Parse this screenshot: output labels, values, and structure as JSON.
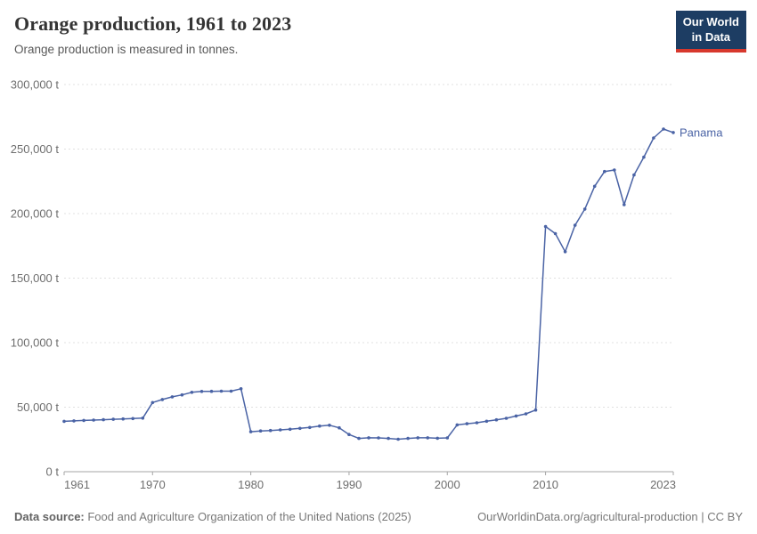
{
  "header": {
    "title": "Orange production, 1961 to 2023",
    "subtitle": "Orange production is measured in tonnes.",
    "logo": {
      "line1": "Our World",
      "line2": "in Data"
    }
  },
  "footer": {
    "source_label": "Data source:",
    "source_text": " Food and Agriculture Organization of the United Nations (2025)",
    "link_text": "OurWorldinData.org/agricultural-production | CC BY"
  },
  "colors": {
    "line": "#4a63a5",
    "grid": "#e0e0e0",
    "axis": "#a5a5a5",
    "tick_label": "#6e6e6e",
    "title": "#343434",
    "subtitle": "#595959",
    "footer": "#787878",
    "logo_bg": "#1d3d63",
    "logo_red": "#d7382d"
  },
  "chart_data": {
    "type": "line",
    "title": "Orange production, 1961 to 2023",
    "ylabel": "",
    "xlabel": "",
    "unit": "tonnes",
    "entity": "Panama",
    "grid": "horizontal-dashed",
    "legend_position": "end-of-line-label",
    "xlim": [
      1961,
      2023
    ],
    "ylim": [
      0,
      300000
    ],
    "xticks": [
      1961,
      1970,
      1980,
      1990,
      2000,
      2010,
      2023
    ],
    "yticks": [
      0,
      50000,
      100000,
      150000,
      200000,
      250000,
      300000
    ],
    "ytick_suffix": " t",
    "x": [
      1961,
      1962,
      1963,
      1964,
      1965,
      1966,
      1967,
      1968,
      1969,
      1970,
      1971,
      1972,
      1973,
      1974,
      1975,
      1976,
      1977,
      1978,
      1979,
      1980,
      1981,
      1982,
      1983,
      1984,
      1985,
      1986,
      1987,
      1988,
      1989,
      1990,
      1991,
      1992,
      1993,
      1994,
      1995,
      1996,
      1997,
      1998,
      1999,
      2000,
      2001,
      2002,
      2003,
      2004,
      2005,
      2006,
      2007,
      2008,
      2009,
      2010,
      2011,
      2012,
      2013,
      2014,
      2015,
      2016,
      2017,
      2018,
      2019,
      2020,
      2021,
      2022,
      2023
    ],
    "series": [
      {
        "name": "Panama",
        "values": [
          39000,
          39400,
          39700,
          40000,
          40300,
          40600,
          40900,
          41200,
          41500,
          53600,
          55900,
          58000,
          59500,
          61500,
          62200,
          62300,
          62400,
          62400,
          64300,
          31000,
          31600,
          31900,
          32400,
          32900,
          33600,
          34300,
          35400,
          36000,
          34000,
          28800,
          25800,
          26300,
          26200,
          25800,
          25200,
          25800,
          26300,
          26300,
          25900,
          26200,
          36300,
          37200,
          37900,
          39100,
          40200,
          41400,
          43200,
          44800,
          47800,
          190000,
          184500,
          170500,
          191000,
          203500,
          221200,
          232600,
          233800,
          206900,
          229900,
          243700,
          258600,
          265500,
          262800
        ]
      }
    ]
  }
}
